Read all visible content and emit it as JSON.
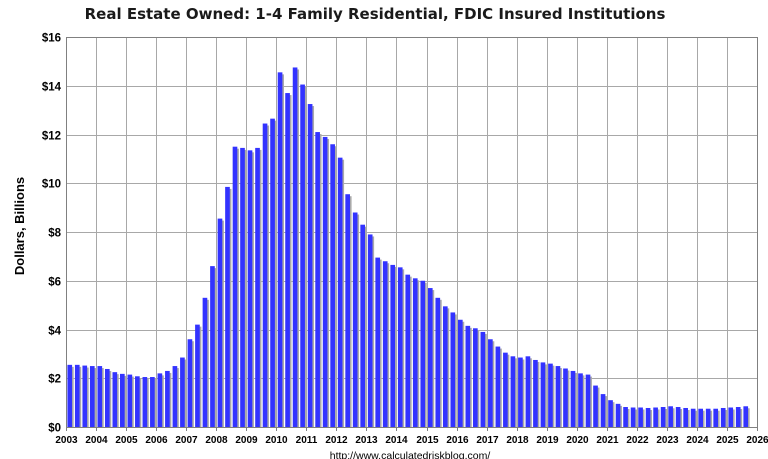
{
  "chart_data": {
    "type": "bar",
    "title": "Real Estate Owned: 1-4 Family Residential, FDIC Insured Institutions",
    "ylabel": "Dollars, Billions",
    "source": "http://www.calculatedriskblog.com/",
    "ylim": [
      0,
      16
    ],
    "yticks": [
      0,
      2,
      4,
      6,
      8,
      10,
      12,
      14,
      16
    ],
    "ytick_labels": [
      "$0",
      "$2",
      "$4",
      "$6",
      "$8",
      "$10",
      "$12",
      "$14",
      "$16"
    ],
    "xlim": [
      2003,
      2026
    ],
    "xticks": [
      "2003",
      "2004",
      "2005",
      "2006",
      "2007",
      "2008",
      "2009",
      "2010",
      "2011",
      "2012",
      "2013",
      "2014",
      "2015",
      "2016",
      "2017",
      "2018",
      "2019",
      "2020",
      "2021",
      "2022",
      "2023",
      "2024",
      "2025",
      "2026"
    ],
    "grid": true,
    "bar_color": "#3333ff",
    "bar_shadow_color": "#aaaaaa",
    "series": [
      {
        "frequency": "quarterly",
        "start": "2003 Q1",
        "values": [
          2.55,
          2.55,
          2.52,
          2.5,
          2.5,
          2.38,
          2.25,
          2.18,
          2.15,
          2.08,
          2.05,
          2.05,
          2.2,
          2.3,
          2.5,
          2.85,
          3.6,
          4.2,
          5.3,
          6.6,
          8.55,
          9.85,
          11.5,
          11.45,
          11.35,
          11.45,
          12.45,
          12.65,
          14.55,
          13.7,
          14.75,
          14.05,
          13.25,
          12.1,
          11.9,
          11.6,
          11.05,
          9.55,
          8.8,
          8.3,
          7.9,
          6.95,
          6.8,
          6.65,
          6.55,
          6.25,
          6.1,
          6.0,
          5.7,
          5.3,
          4.95,
          4.7,
          4.4,
          4.15,
          4.05,
          3.9,
          3.6,
          3.3,
          3.05,
          2.9,
          2.85,
          2.9,
          2.75,
          2.65,
          2.6,
          2.5,
          2.4,
          2.3,
          2.2,
          2.15,
          1.7,
          1.35,
          1.1,
          0.95,
          0.82,
          0.8,
          0.8,
          0.78,
          0.8,
          0.82,
          0.85,
          0.82,
          0.78,
          0.75,
          0.75,
          0.75,
          0.75,
          0.78,
          0.8,
          0.82,
          0.85
        ]
      }
    ]
  }
}
